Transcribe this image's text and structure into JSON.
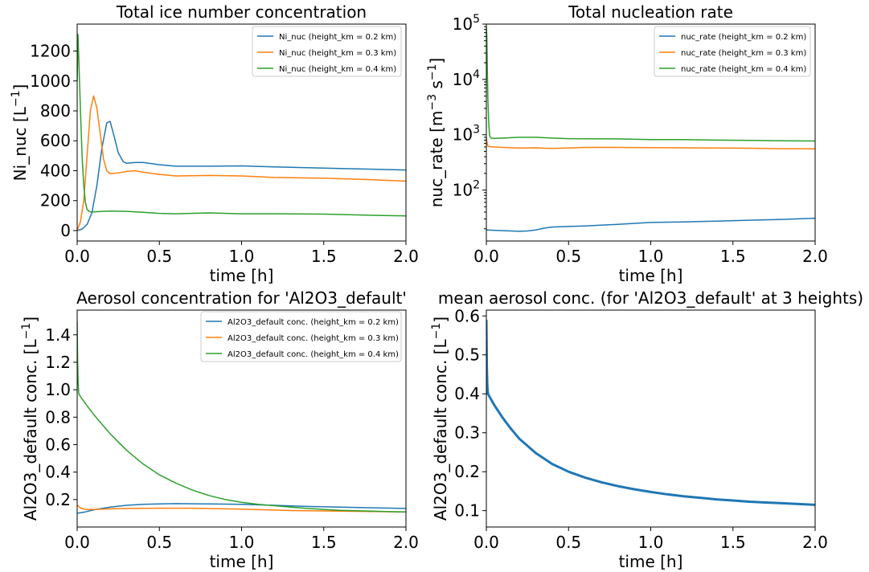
{
  "chart_data": [
    {
      "type": "line",
      "title": "Total ice number concentration",
      "xlabel": "time [h]",
      "ylabel": "Ni_nuc [L^-1]",
      "xlim": [
        0,
        2.0
      ],
      "ylim": [
        -70,
        1380
      ],
      "xticks": [
        "0.0",
        "0.5",
        "1.0",
        "1.5",
        "2.0"
      ],
      "yticks": [
        "0",
        "200",
        "400",
        "600",
        "800",
        "1000",
        "1200"
      ],
      "legend": "top-right",
      "series": [
        {
          "name": "Ni_nuc (height_km = 0.2 km)",
          "color": "#1f77b4",
          "x": [
            0,
            0.03,
            0.06,
            0.09,
            0.12,
            0.15,
            0.18,
            0.2,
            0.22,
            0.25,
            0.28,
            0.3,
            0.35,
            0.4,
            0.5,
            0.6,
            0.8,
            1.0,
            1.2,
            1.4,
            1.6,
            1.8,
            2.0
          ],
          "y": [
            0,
            10,
            40,
            120,
            300,
            550,
            720,
            730,
            650,
            520,
            460,
            450,
            455,
            455,
            440,
            430,
            430,
            432,
            425,
            420,
            415,
            410,
            405
          ]
        },
        {
          "name": "Ni_nuc (height_km = 0.3 km)",
          "color": "#ff7f0e",
          "x": [
            0,
            0.02,
            0.04,
            0.06,
            0.08,
            0.1,
            0.12,
            0.14,
            0.16,
            0.18,
            0.2,
            0.25,
            0.3,
            0.35,
            0.4,
            0.5,
            0.6,
            0.8,
            1.0,
            1.2,
            1.5,
            1.8,
            2.0
          ],
          "y": [
            0,
            60,
            200,
            500,
            800,
            900,
            820,
            650,
            480,
            400,
            380,
            385,
            395,
            400,
            390,
            375,
            365,
            368,
            365,
            355,
            350,
            340,
            330
          ]
        },
        {
          "name": "Ni_nuc (height_km = 0.4 km)",
          "color": "#2ca02c",
          "x": [
            0,
            0.005,
            0.01,
            0.02,
            0.03,
            0.04,
            0.05,
            0.06,
            0.08,
            0.1,
            0.15,
            0.2,
            0.3,
            0.4,
            0.5,
            0.6,
            0.8,
            1.0,
            1.2,
            1.5,
            1.8,
            2.0
          ],
          "y": [
            1000,
            1310,
            1150,
            800,
            500,
            300,
            190,
            140,
            125,
            125,
            128,
            130,
            128,
            122,
            115,
            112,
            118,
            112,
            112,
            110,
            102,
            98
          ]
        }
      ]
    },
    {
      "type": "line",
      "title": "Total nucleation rate",
      "xlabel": "time [h]",
      "ylabel": "nuc_rate [m^-3 s^-1]",
      "yscale": "log",
      "xlim": [
        0,
        2.0
      ],
      "ylim": [
        12,
        100000
      ],
      "xticks": [
        "0.0",
        "0.5",
        "1.0",
        "1.5",
        "2.0"
      ],
      "yticks": [
        "10^2",
        "10^3",
        "10^4",
        "10^5"
      ],
      "legend": "top-right",
      "series": [
        {
          "name": "nuc_rate (height_km = 0.2 km)",
          "color": "#1f77b4",
          "x": [
            0,
            0.1,
            0.2,
            0.25,
            0.3,
            0.35,
            0.4,
            0.5,
            0.6,
            0.8,
            1.0,
            1.2,
            1.4,
            1.6,
            1.8,
            2.0
          ],
          "y": [
            19,
            18.5,
            18,
            18.2,
            19,
            20.5,
            21.5,
            22,
            22.5,
            24,
            26,
            26.5,
            27.5,
            28.5,
            29.5,
            31
          ]
        },
        {
          "name": "nuc_rate (height_km = 0.3 km)",
          "color": "#ff7f0e",
          "x": [
            0,
            0.005,
            0.01,
            0.02,
            0.05,
            0.1,
            0.2,
            0.3,
            0.35,
            0.4,
            0.5,
            0.6,
            0.8,
            1.0,
            1.2,
            1.4,
            1.6,
            1.8,
            2.0
          ],
          "y": [
            900,
            700,
            620,
            610,
            600,
            590,
            575,
            580,
            570,
            565,
            575,
            590,
            590,
            585,
            580,
            575,
            570,
            560,
            555
          ]
        },
        {
          "name": "nuc_rate (height_km = 0.4 km)",
          "color": "#2ca02c",
          "x": [
            0,
            0.003,
            0.006,
            0.01,
            0.015,
            0.02,
            0.03,
            0.05,
            0.1,
            0.2,
            0.3,
            0.4,
            0.5,
            0.6,
            0.8,
            1.0,
            1.2,
            1.4,
            1.6,
            1.8,
            2.0
          ],
          "y": [
            90000,
            60000,
            15000,
            4000,
            1500,
            950,
            870,
            860,
            870,
            900,
            900,
            870,
            850,
            845,
            840,
            820,
            815,
            800,
            790,
            780,
            770
          ]
        }
      ]
    },
    {
      "type": "line",
      "title": "Aerosol concentration for 'Al2O3_default'",
      "xlabel": "time [h]",
      "ylabel": "Al2O3_default conc. [L^-1]",
      "xlim": [
        0,
        2.0
      ],
      "ylim": [
        0,
        1.58
      ],
      "xticks": [
        "0.0",
        "0.5",
        "1.0",
        "1.5",
        "2.0"
      ],
      "yticks": [
        "0.2",
        "0.4",
        "0.6",
        "0.8",
        "1.0",
        "1.2",
        "1.4"
      ],
      "legend": "top-right",
      "series": [
        {
          "name": "Al2O3_default conc. (height_km = 0.2 km)",
          "color": "#1f77b4",
          "x": [
            0,
            0.05,
            0.1,
            0.2,
            0.3,
            0.4,
            0.5,
            0.6,
            0.8,
            1.0,
            1.2,
            1.4,
            1.6,
            1.8,
            2.0
          ],
          "y": [
            0.1,
            0.11,
            0.125,
            0.145,
            0.158,
            0.165,
            0.168,
            0.17,
            0.168,
            0.165,
            0.158,
            0.15,
            0.145,
            0.14,
            0.135
          ]
        },
        {
          "name": "Al2O3_default conc. (height_km = 0.3 km)",
          "color": "#ff7f0e",
          "x": [
            0,
            0.02,
            0.05,
            0.1,
            0.2,
            0.3,
            0.5,
            0.7,
            1.0,
            1.3,
            1.6,
            2.0
          ],
          "y": [
            0.16,
            0.14,
            0.128,
            0.128,
            0.132,
            0.135,
            0.137,
            0.137,
            0.13,
            0.12,
            0.115,
            0.11
          ]
        },
        {
          "name": "Al2O3_default conc. (height_km = 0.4 km)",
          "color": "#2ca02c",
          "x": [
            0,
            0.003,
            0.006,
            0.01,
            0.02,
            0.05,
            0.1,
            0.2,
            0.3,
            0.4,
            0.5,
            0.6,
            0.7,
            0.8,
            0.9,
            1.0,
            1.1,
            1.2,
            1.3,
            1.4,
            1.5,
            1.6,
            1.7,
            1.8,
            1.9,
            2.0
          ],
          "y": [
            1.5,
            1.2,
            1.05,
            0.97,
            0.95,
            0.9,
            0.82,
            0.68,
            0.56,
            0.46,
            0.38,
            0.32,
            0.27,
            0.23,
            0.2,
            0.18,
            0.165,
            0.155,
            0.145,
            0.135,
            0.128,
            0.122,
            0.118,
            0.115,
            0.112,
            0.11
          ]
        }
      ]
    },
    {
      "type": "line",
      "title": "mean aerosol conc. (for 'Al2O3_default' at 3 heights)",
      "xlabel": "time [h]",
      "ylabel": "Al2O3_default conc. [L^-1]",
      "xlim": [
        0,
        2.0
      ],
      "ylim": [
        0.058,
        0.615
      ],
      "xticks": [
        "0.0",
        "0.5",
        "1.0",
        "1.5",
        "2.0"
      ],
      "yticks": [
        "0.1",
        "0.2",
        "0.3",
        "0.4",
        "0.5",
        "0.6"
      ],
      "series": [
        {
          "color": "#1f77b4",
          "x": [
            0,
            0.003,
            0.006,
            0.01,
            0.02,
            0.05,
            0.1,
            0.15,
            0.2,
            0.3,
            0.4,
            0.5,
            0.6,
            0.7,
            0.8,
            0.9,
            1.0,
            1.1,
            1.2,
            1.3,
            1.4,
            1.5,
            1.6,
            1.7,
            1.8,
            1.9,
            2.0
          ],
          "y": [
            0.59,
            0.47,
            0.42,
            0.4,
            0.392,
            0.37,
            0.338,
            0.31,
            0.285,
            0.248,
            0.22,
            0.2,
            0.185,
            0.173,
            0.163,
            0.155,
            0.148,
            0.142,
            0.137,
            0.133,
            0.129,
            0.126,
            0.123,
            0.121,
            0.119,
            0.117,
            0.115
          ]
        }
      ]
    }
  ]
}
